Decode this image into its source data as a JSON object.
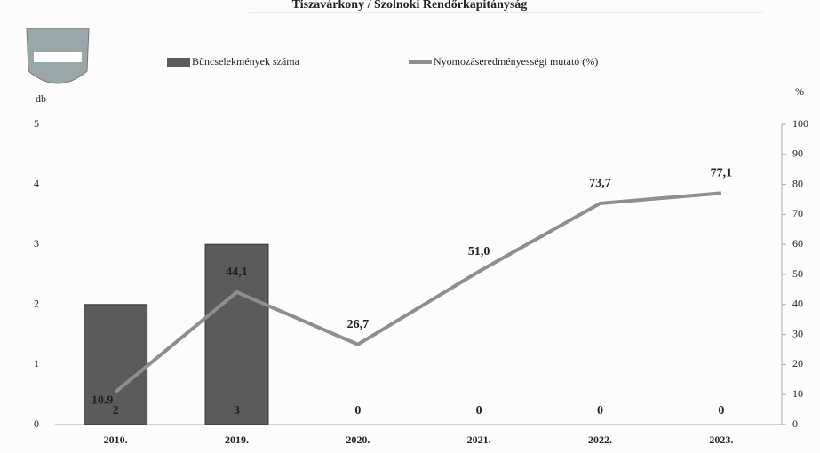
{
  "chart_data": {
    "type": "bar",
    "title": "Tiszavárkony / Szolnoki Rendőrkapitányság",
    "y_label": "db",
    "y2_label": "%",
    "categories": [
      "2010.",
      "2019.",
      "2020.",
      "2021.",
      "2022.",
      "2023."
    ],
    "series": [
      {
        "name": "Bűncselekmények száma",
        "type": "bar",
        "color": "#5b5b5b",
        "values": [
          2,
          3,
          0,
          0,
          0,
          0
        ]
      },
      {
        "name": "Nyomozáseredményességi mutató (%)",
        "type": "line",
        "axis": "y2",
        "color": "#8e8e8e",
        "values": [
          10.9,
          44.1,
          26.7,
          51.0,
          73.7,
          77.1
        ],
        "value_labels": [
          "10.9",
          "44,1",
          "26,7",
          "51,0",
          "73,7",
          "77,1"
        ]
      }
    ],
    "ylim": [
      0,
      5
    ],
    "yticks": [
      0,
      1,
      2,
      3,
      4,
      5
    ],
    "y2lim": [
      0,
      100
    ],
    "y2ticks": [
      0,
      10,
      20,
      30,
      40,
      50,
      60,
      70,
      80,
      90,
      100
    ],
    "grid": false
  }
}
